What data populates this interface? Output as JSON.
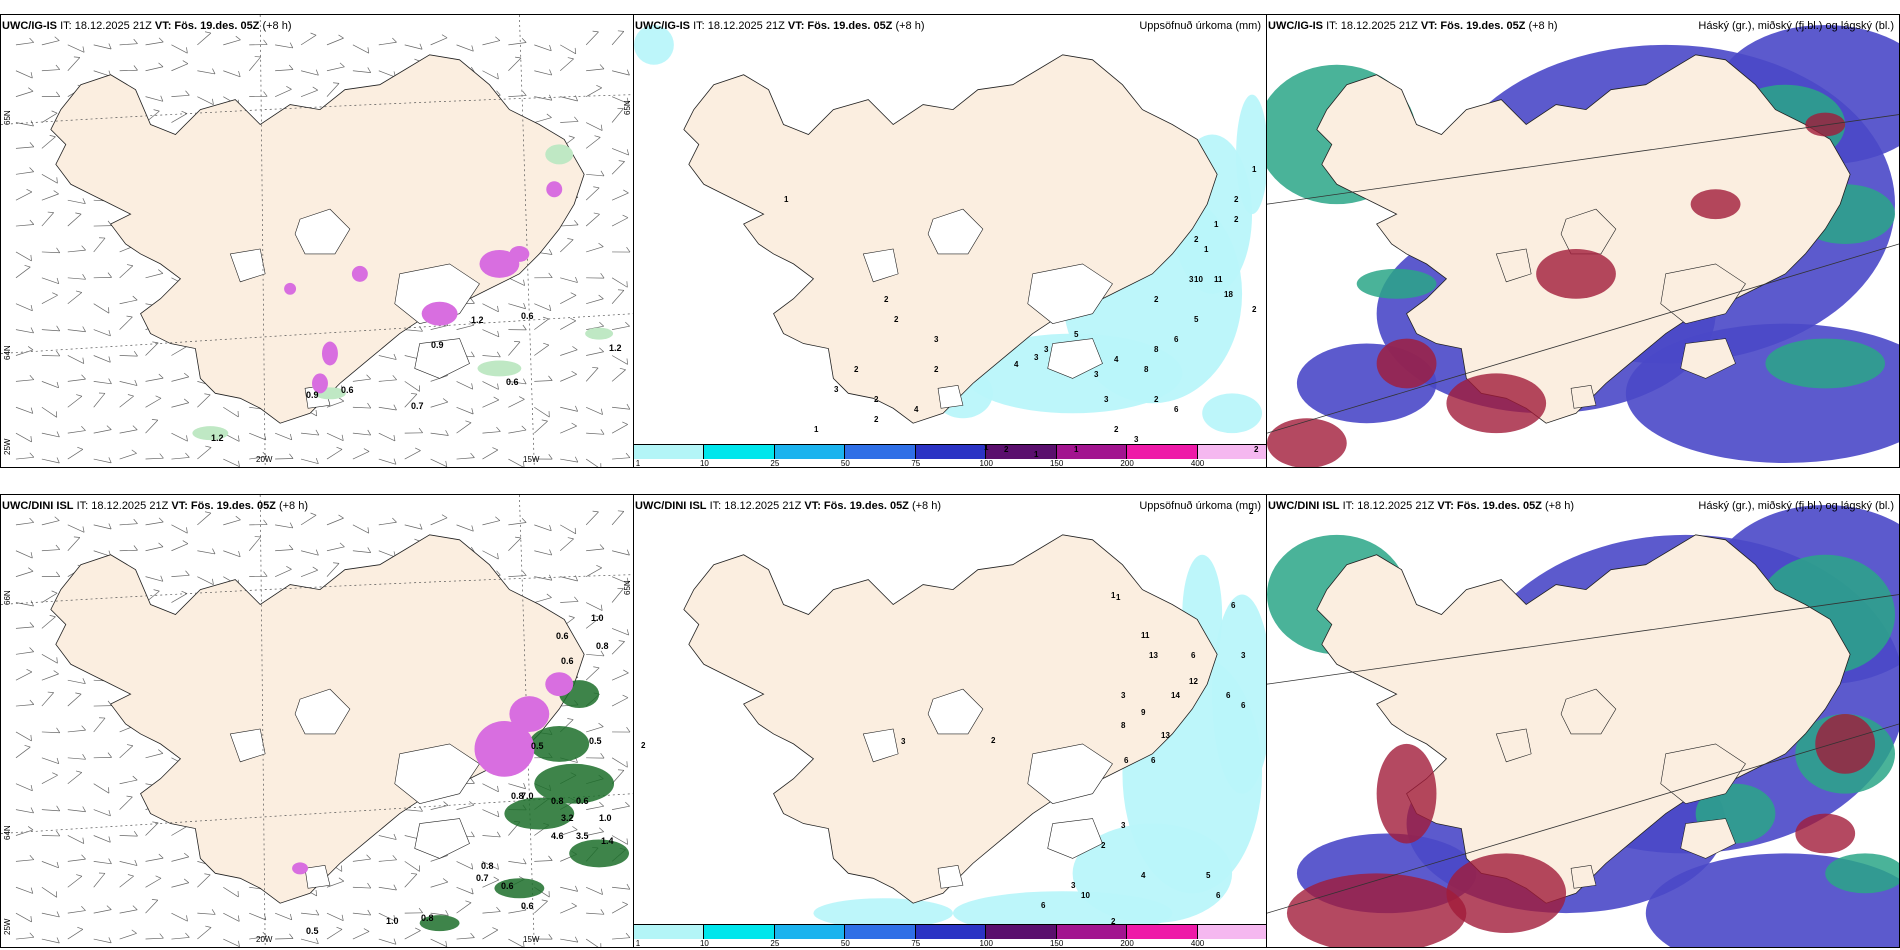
{
  "panels": [
    {
      "id": "top-left",
      "model": "UWC/IG-IS",
      "it": "IT: 18.12.2025 21Z",
      "vt_label": "VT:",
      "vt": "Fös. 19.des. 05Z",
      "lead": "(+8 h)",
      "right_title": "",
      "kind": "wind",
      "axis": {
        "lat_top": "65N",
        "lat_mid": "64N",
        "lat_bot": "25W",
        "lon_a": "20W",
        "lon_b": "15W",
        "lat_right": "65N"
      },
      "values": [
        "0.6",
        "0.9",
        "0.6",
        "0.7",
        "0.6",
        "1.2",
        "1.2",
        "0.9",
        "1.2"
      ]
    },
    {
      "id": "top-center",
      "model": "UWC/IG-IS",
      "it": "IT: 18.12.2025 21Z",
      "vt_label": "VT:",
      "vt": "Fös. 19.des. 05Z",
      "lead": "(+8 h)",
      "right_title": "Uppsöfnuð úrkoma (mm)",
      "kind": "precip",
      "values": [
        "1",
        "2",
        "2",
        "2",
        "1",
        "2",
        "3",
        "5",
        "3",
        "3",
        "2",
        "4",
        "11",
        "10",
        "18",
        "3",
        "2",
        "4",
        "3",
        "3",
        "5",
        "6",
        "8",
        "8",
        "2",
        "6",
        "3",
        "2",
        "1",
        "1",
        "1",
        "1",
        "2",
        "2",
        "3",
        "2",
        "4",
        "2",
        "1",
        "2",
        "1",
        "2",
        "2"
      ]
    },
    {
      "id": "top-right",
      "model": "UWC/IG-IS",
      "it": "IT: 18.12.2025 21Z",
      "vt_label": "VT:",
      "vt": "Fös. 19.des. 05Z",
      "lead": "(+8 h)",
      "right_title": "Háský (gr.), miðský (fj.bl.) og lágský (bl.)",
      "kind": "cloud"
    },
    {
      "id": "bottom-left",
      "model": "UWC/DINI ISL",
      "it": "IT: 18.12.2025 21Z",
      "vt_label": "VT:",
      "vt": "Fös. 19.des. 05Z",
      "lead": "(+8 h)",
      "right_title": "",
      "kind": "wind",
      "axis": {
        "lat_top": "66N",
        "lat_mid": "64N",
        "lat_bot": "25W",
        "lon_a": "20W",
        "lon_b": "15W",
        "lat_right": "65N"
      },
      "values": [
        "1.0",
        "0.6",
        "0.8",
        "0.6",
        "0.5",
        "0.8",
        "7.0",
        "0.8",
        "0.6",
        "1.0",
        "1.4",
        "0.5",
        "0.8",
        "0.7",
        "0.6",
        "1.0",
        "0.8",
        "0.5",
        "0.6",
        "3.2",
        "4.6",
        "3.5"
      ]
    },
    {
      "id": "bottom-center",
      "model": "UWC/DINI ISL",
      "it": "IT: 18.12.2025 21Z",
      "vt_label": "VT:",
      "vt": "Fös. 19.des. 05Z",
      "lead": "(+8 h)",
      "right_title": "Uppsöfnuð úrkoma (mm)",
      "kind": "precip",
      "values": [
        "2",
        "2",
        "3",
        "2",
        "6",
        "3",
        "6",
        "6",
        "1",
        "6",
        "8",
        "11",
        "3",
        "13",
        "12",
        "14",
        "9",
        "6",
        "6",
        "13",
        "10",
        "6",
        "3",
        "2",
        "4",
        "5",
        "6",
        "2",
        "3",
        "1",
        "6"
      ]
    },
    {
      "id": "bottom-right",
      "model": "UWC/DINI ISL",
      "it": "IT: 18.12.2025 21Z",
      "vt_label": "VT:",
      "vt": "Fös. 19.des. 05Z",
      "lead": "(+8 h)",
      "right_title": "Háský (gr.), miðský (fj.bl.) og lágský (bl.)",
      "kind": "cloud"
    }
  ],
  "legend": {
    "ticks": [
      "1",
      "10",
      "25",
      "50",
      "75",
      "100",
      "150",
      "200",
      "400"
    ],
    "colors": [
      "#b3f5f7",
      "#00e6ec",
      "#1bb3ee",
      "#2f6fe6",
      "#2b33c4",
      "#5a0f6d",
      "#a2148f",
      "#ee1aa8",
      "#f5b8f0"
    ]
  },
  "colors": {
    "land": "#fbeee0",
    "precip_light": "#b9f6fa",
    "pink": "#d86ee0",
    "green_light": "#bfe8c4",
    "green_dark": "#1c6e2a",
    "cloud_blue": "#4a48c8",
    "cloud_teal": "#2aa687",
    "cloud_red": "#a11c3a"
  }
}
